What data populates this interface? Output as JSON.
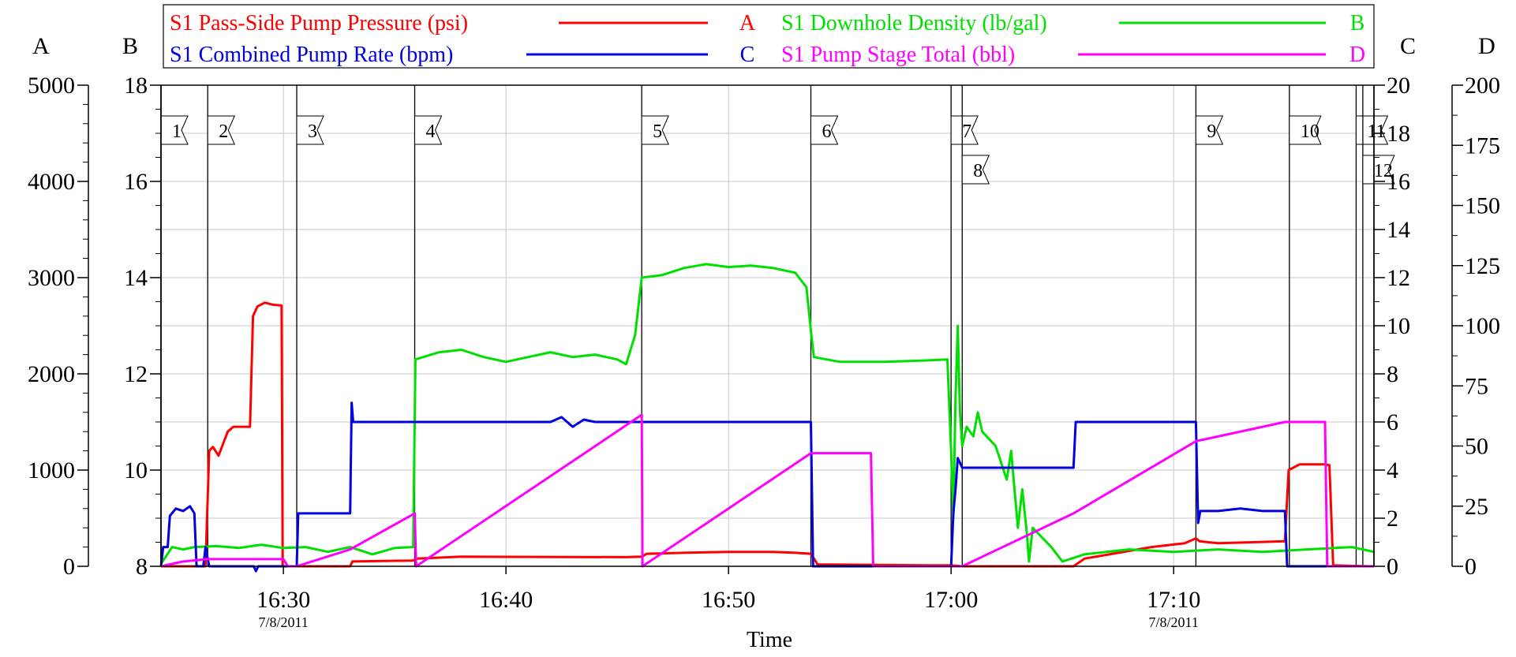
{
  "chart_data": {
    "type": "line",
    "xlabel": "Time",
    "x_range": [
      "16:24:30",
      "17:19:00"
    ],
    "x_ticks": [
      {
        "time": "16:30",
        "label": "16:30",
        "sublabel": "7/8/2011"
      },
      {
        "time": "16:40",
        "label": "16:40",
        "sublabel": ""
      },
      {
        "time": "16:50",
        "label": "16:50",
        "sublabel": ""
      },
      {
        "time": "17:00",
        "label": "17:00",
        "sublabel": ""
      },
      {
        "time": "17:10",
        "label": "17:10",
        "sublabel": "7/8/2011"
      }
    ],
    "grid": true,
    "axes": {
      "A": {
        "label": "A",
        "range": [
          0,
          5000
        ],
        "ticks": [
          "0",
          "1000",
          "2000",
          "3000",
          "4000",
          "5000"
        ]
      },
      "B": {
        "label": "B",
        "range": [
          8,
          18
        ],
        "ticks": [
          "8",
          "10",
          "12",
          "14",
          "16",
          "18"
        ]
      },
      "C": {
        "label": "C",
        "range": [
          0,
          20
        ],
        "ticks": [
          "0",
          "2",
          "4",
          "6",
          "8",
          "10",
          "12",
          "14",
          "16",
          "18",
          "20"
        ]
      },
      "D": {
        "label": "D",
        "range": [
          0,
          200
        ],
        "ticks": [
          "0",
          "25",
          "50",
          "75",
          "100",
          "125",
          "150",
          "175",
          "200"
        ]
      }
    },
    "legend": {
      "placement": "top",
      "entries": [
        {
          "name": "S1 Pass-Side Pump Pressure (psi)",
          "axis": "A",
          "color": "#ff0000"
        },
        {
          "name": "S1 Downhole Density (lb/gal)",
          "axis": "B",
          "color": "#00e000"
        },
        {
          "name": "S1 Combined Pump Rate (bpm)",
          "axis": "C",
          "color": "#0000e0"
        },
        {
          "name": "S1 Pump Stage Total (bbl)",
          "axis": "D",
          "color": "#ff00ff"
        }
      ]
    },
    "stages": [
      {
        "label": "1",
        "time": "16:24:30"
      },
      {
        "label": "2",
        "time": "16:26:36"
      },
      {
        "label": "3",
        "time": "16:30:36"
      },
      {
        "label": "4",
        "time": "16:35:54"
      },
      {
        "label": "5",
        "time": "16:46:06"
      },
      {
        "label": "6",
        "time": "16:53:42"
      },
      {
        "label": "7",
        "time": "17:00:00"
      },
      {
        "label": "8",
        "time": "17:00:30"
      },
      {
        "label": "9",
        "time": "17:11:00"
      },
      {
        "label": "10",
        "time": "17:15:12"
      },
      {
        "label": "11",
        "time": "17:18:12"
      },
      {
        "label": "12",
        "time": "17:18:30"
      }
    ],
    "series": [
      {
        "name": "S1 Pass-Side Pump Pressure (psi)",
        "axis": "A",
        "color": "#ff0000",
        "points": [
          [
            "16:24:30",
            0
          ],
          [
            "16:26:30",
            0
          ],
          [
            "16:26:40",
            1200
          ],
          [
            "16:26:50",
            1240
          ],
          [
            "16:27:05",
            1150
          ],
          [
            "16:27:15",
            1250
          ],
          [
            "16:27:30",
            1400
          ],
          [
            "16:27:45",
            1450
          ],
          [
            "16:28:30",
            1450
          ],
          [
            "16:28:38",
            2600
          ],
          [
            "16:28:50",
            2700
          ],
          [
            "16:29:10",
            2740
          ],
          [
            "16:29:30",
            2720
          ],
          [
            "16:29:55",
            2710
          ],
          [
            "16:29:58",
            0
          ],
          [
            "16:33:00",
            0
          ],
          [
            "16:33:06",
            50
          ],
          [
            "16:35:50",
            60
          ],
          [
            "16:36:00",
            80
          ],
          [
            "16:38:00",
            100
          ],
          [
            "16:45:24",
            95
          ],
          [
            "16:46:06",
            100
          ],
          [
            "16:46:20",
            130
          ],
          [
            "16:48:00",
            140
          ],
          [
            "16:50:00",
            150
          ],
          [
            "16:52:00",
            150
          ],
          [
            "16:53:00",
            140
          ],
          [
            "16:53:42",
            130
          ],
          [
            "16:54:00",
            20
          ],
          [
            "16:59:00",
            10
          ],
          [
            "17:00:00",
            10
          ],
          [
            "17:00:30",
            0
          ],
          [
            "17:04:00",
            0
          ],
          [
            "17:05:30",
            0
          ],
          [
            "17:06:00",
            80
          ],
          [
            "17:07:00",
            120
          ],
          [
            "17:08:00",
            160
          ],
          [
            "17:09:00",
            200
          ],
          [
            "17:10:30",
            240
          ],
          [
            "17:11:00",
            290
          ],
          [
            "17:11:10",
            260
          ],
          [
            "17:12:00",
            240
          ],
          [
            "17:15:00",
            260
          ],
          [
            "17:15:10",
            1000
          ],
          [
            "17:15:40",
            1060
          ],
          [
            "17:16:00",
            1060
          ],
          [
            "17:16:48",
            1060
          ],
          [
            "17:17:00",
            1050
          ],
          [
            "17:17:10",
            10
          ],
          [
            "17:18:48",
            0
          ]
        ]
      },
      {
        "name": "S1 Downhole Density (lb/gal)",
        "axis": "B",
        "color": "#00e000",
        "points": [
          [
            "16:24:30",
            8.05
          ],
          [
            "16:25:00",
            8.4
          ],
          [
            "16:25:30",
            8.35
          ],
          [
            "16:26:00",
            8.4
          ],
          [
            "16:27:00",
            8.42
          ],
          [
            "16:28:00",
            8.38
          ],
          [
            "16:29:00",
            8.45
          ],
          [
            "16:30:00",
            8.38
          ],
          [
            "16:31:00",
            8.4
          ],
          [
            "16:32:00",
            8.3
          ],
          [
            "16:33:00",
            8.4
          ],
          [
            "16:34:00",
            8.25
          ],
          [
            "16:35:00",
            8.38
          ],
          [
            "16:35:50",
            8.4
          ],
          [
            "16:35:56",
            12.3
          ],
          [
            "16:37:00",
            12.45
          ],
          [
            "16:38:00",
            12.5
          ],
          [
            "16:39:00",
            12.35
          ],
          [
            "16:40:00",
            12.25
          ],
          [
            "16:41:00",
            12.35
          ],
          [
            "16:42:00",
            12.45
          ],
          [
            "16:43:00",
            12.35
          ],
          [
            "16:44:00",
            12.4
          ],
          [
            "16:45:00",
            12.3
          ],
          [
            "16:45:24",
            12.2
          ],
          [
            "16:45:48",
            12.8
          ],
          [
            "16:46:06",
            14.0
          ],
          [
            "16:47:00",
            14.05
          ],
          [
            "16:48:00",
            14.2
          ],
          [
            "16:49:00",
            14.28
          ],
          [
            "16:50:00",
            14.22
          ],
          [
            "16:51:00",
            14.25
          ],
          [
            "16:52:00",
            14.2
          ],
          [
            "16:53:00",
            14.1
          ],
          [
            "16:53:30",
            13.8
          ],
          [
            "16:53:42",
            12.9
          ],
          [
            "16:53:50",
            12.35
          ],
          [
            "16:55:00",
            12.25
          ],
          [
            "16:57:00",
            12.25
          ],
          [
            "16:59:00",
            12.28
          ],
          [
            "16:59:50",
            12.3
          ],
          [
            "17:00:00",
            10.4
          ],
          [
            "17:00:06",
            9.0
          ],
          [
            "17:00:12",
            11.5
          ],
          [
            "17:00:18",
            13.0
          ],
          [
            "17:00:24",
            11.2
          ],
          [
            "17:00:30",
            10.5
          ],
          [
            "17:00:42",
            10.9
          ],
          [
            "17:01:00",
            10.7
          ],
          [
            "17:01:12",
            11.2
          ],
          [
            "17:01:24",
            10.8
          ],
          [
            "17:02:00",
            10.5
          ],
          [
            "17:02:30",
            9.8
          ],
          [
            "17:02:42",
            10.4
          ],
          [
            "17:03:00",
            8.8
          ],
          [
            "17:03:12",
            9.6
          ],
          [
            "17:03:24",
            8.7
          ],
          [
            "17:03:30",
            8.1
          ],
          [
            "17:03:40",
            8.8
          ],
          [
            "17:04:30",
            8.4
          ],
          [
            "17:05:00",
            8.1
          ],
          [
            "17:06:00",
            8.25
          ],
          [
            "17:08:00",
            8.35
          ],
          [
            "17:10:00",
            8.3
          ],
          [
            "17:12:00",
            8.35
          ],
          [
            "17:14:00",
            8.3
          ],
          [
            "17:16:00",
            8.35
          ],
          [
            "17:18:00",
            8.4
          ],
          [
            "17:19:00",
            8.3
          ]
        ]
      },
      {
        "name": "S1 Combined Pump Rate (bpm)",
        "axis": "C",
        "color": "#0000e0",
        "points": [
          [
            "16:24:30",
            0
          ],
          [
            "16:24:36",
            0.8
          ],
          [
            "16:24:48",
            0.8
          ],
          [
            "16:24:54",
            2.1
          ],
          [
            "16:25:10",
            2.4
          ],
          [
            "16:25:30",
            2.3
          ],
          [
            "16:25:48",
            2.5
          ],
          [
            "16:26:00",
            2.2
          ],
          [
            "16:26:06",
            0
          ],
          [
            "16:26:24",
            0
          ],
          [
            "16:26:30",
            0.8
          ],
          [
            "16:26:40",
            0
          ],
          [
            "16:28:40",
            0
          ],
          [
            "16:28:46",
            -0.2
          ],
          [
            "16:28:52",
            0
          ],
          [
            "16:30:36",
            0
          ],
          [
            "16:30:40",
            2.2
          ],
          [
            "16:33:00",
            2.2
          ],
          [
            "16:33:04",
            6.8
          ],
          [
            "16:33:08",
            6.0
          ],
          [
            "16:40:00",
            6.0
          ],
          [
            "16:42:00",
            6.0
          ],
          [
            "16:42:30",
            6.2
          ],
          [
            "16:43:00",
            5.8
          ],
          [
            "16:43:30",
            6.1
          ],
          [
            "16:44:00",
            6.0
          ],
          [
            "16:53:42",
            6.0
          ],
          [
            "16:53:48",
            0
          ],
          [
            "17:00:00",
            0
          ],
          [
            "17:00:06",
            2.2
          ],
          [
            "17:00:12",
            3.2
          ],
          [
            "17:00:18",
            4.5
          ],
          [
            "17:00:30",
            4.1
          ],
          [
            "17:05:30",
            4.1
          ],
          [
            "17:05:36",
            6.0
          ],
          [
            "17:11:00",
            6.0
          ],
          [
            "17:11:06",
            1.8
          ],
          [
            "17:11:12",
            2.3
          ],
          [
            "17:12:00",
            2.3
          ],
          [
            "17:13:00",
            2.4
          ],
          [
            "17:14:00",
            2.3
          ],
          [
            "17:15:00",
            2.3
          ],
          [
            "17:15:06",
            0
          ],
          [
            "17:19:00",
            0
          ]
        ]
      },
      {
        "name": "S1 Pump Stage Total (bbl)",
        "axis": "D",
        "color": "#ff00ff",
        "points": [
          [
            "16:24:30",
            0
          ],
          [
            "16:25:30",
            2
          ],
          [
            "16:26:36",
            3
          ],
          [
            "16:30:00",
            3
          ],
          [
            "16:30:12",
            0
          ],
          [
            "16:30:36",
            0
          ],
          [
            "16:33:00",
            7
          ],
          [
            "16:35:54",
            22
          ],
          [
            "16:35:58",
            0
          ],
          [
            "16:46:06",
            63
          ],
          [
            "16:46:08",
            0
          ],
          [
            "16:53:42",
            47
          ],
          [
            "16:56:24",
            47
          ],
          [
            "16:56:30",
            0
          ],
          [
            "17:00:30",
            0
          ],
          [
            "17:05:30",
            22
          ],
          [
            "17:11:00",
            52
          ],
          [
            "17:15:00",
            60
          ],
          [
            "17:16:48",
            60
          ],
          [
            "17:16:54",
            0
          ],
          [
            "17:19:00",
            0
          ]
        ]
      }
    ]
  }
}
